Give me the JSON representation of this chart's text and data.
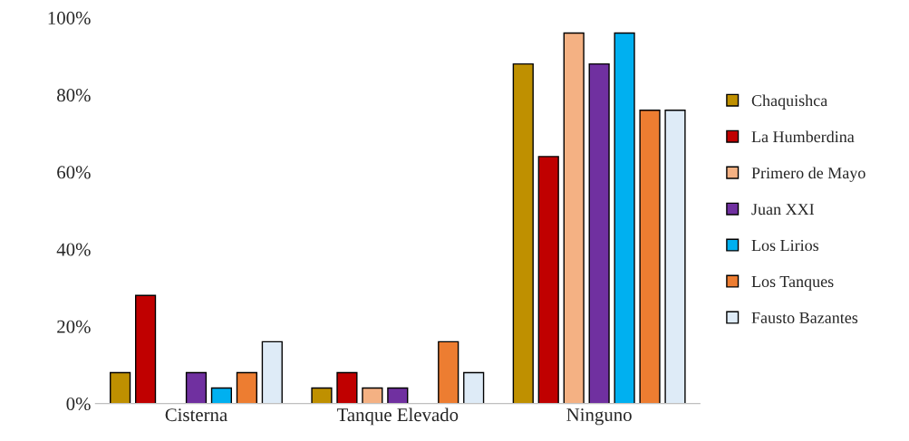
{
  "chart_data": {
    "type": "bar",
    "categories": [
      "Cisterna",
      "Tanque Elevado",
      "Ninguno"
    ],
    "series": [
      {
        "name": "Chaquishca",
        "color": "#bf9000",
        "values": [
          8,
          4,
          88
        ]
      },
      {
        "name": "La Humberdina",
        "color": "#c00000",
        "values": [
          28,
          8,
          64
        ]
      },
      {
        "name": "Primero de Mayo",
        "color": "#f4b183",
        "values": [
          null,
          4,
          96
        ]
      },
      {
        "name": "Juan XXI",
        "color": "#7030a0",
        "values": [
          8,
          4,
          88
        ]
      },
      {
        "name": "Los Lirios",
        "color": "#00b0f0",
        "values": [
          4,
          null,
          96
        ]
      },
      {
        "name": "Los Tanques",
        "color": "#ed7d31",
        "values": [
          8,
          16,
          76
        ]
      },
      {
        "name": "Fausto Bazantes",
        "color": "#deebf7",
        "values": [
          16,
          8,
          76
        ]
      }
    ],
    "ylim": [
      0,
      100
    ],
    "yticks": [
      {
        "value": 0,
        "label": "0%"
      },
      {
        "value": 20,
        "label": "20%"
      },
      {
        "value": 40,
        "label": "40%"
      },
      {
        "value": 60,
        "label": "60%"
      },
      {
        "value": 80,
        "label": "80%"
      },
      {
        "value": 100,
        "label": "100%"
      }
    ],
    "grid": false,
    "legend": "right"
  }
}
